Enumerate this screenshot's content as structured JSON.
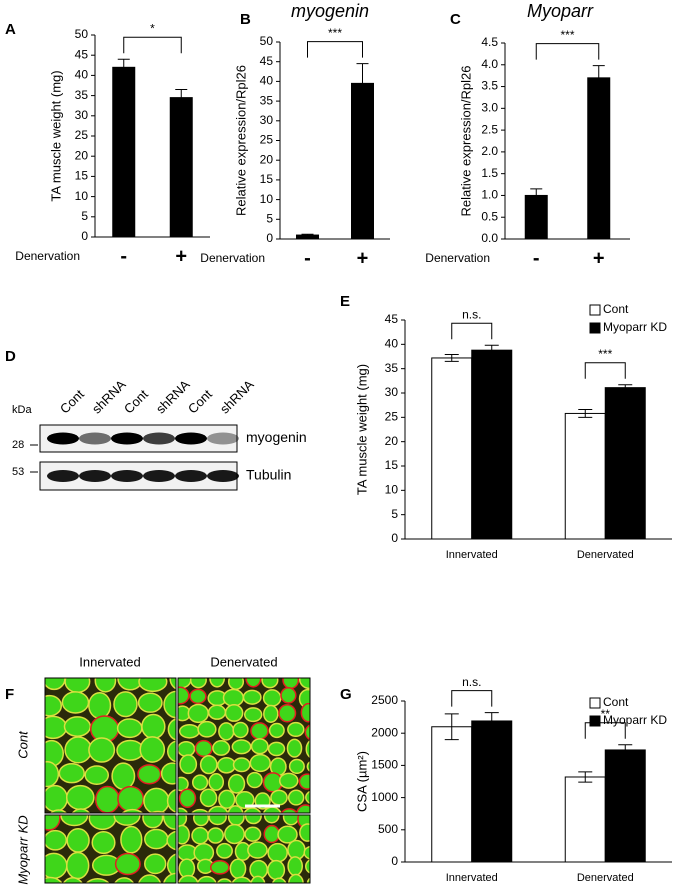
{
  "chart_data": [
    {
      "type": "bar",
      "label": "A",
      "y_label": "TA muscle weight (mg)",
      "x_label": "Denervation",
      "categories": [
        "-",
        "+"
      ],
      "values": [
        42,
        34.5
      ],
      "errors": [
        2,
        2
      ],
      "color": "#000000",
      "ylim": [
        0,
        50
      ],
      "yticks": [
        0,
        5,
        10,
        15,
        20,
        25,
        30,
        35,
        40,
        45,
        50
      ],
      "annotation": "*"
    },
    {
      "type": "bar",
      "label": "B",
      "title": "myogenin",
      "y_label": "Relative expression/Rpl26",
      "x_label": "Denervation",
      "categories": [
        "-",
        "+"
      ],
      "values": [
        1,
        39.5
      ],
      "errors": [
        0.2,
        5
      ],
      "color": "#000000",
      "ylim": [
        0,
        50
      ],
      "yticks": [
        0,
        5,
        10,
        15,
        20,
        25,
        30,
        35,
        40,
        45,
        50
      ],
      "annotation": "***"
    },
    {
      "type": "bar",
      "label": "C",
      "title": "Myoparr",
      "y_label": "Relative expression/Rpl26",
      "x_label": "Denervation",
      "categories": [
        "-",
        "+"
      ],
      "values": [
        1.0,
        3.7
      ],
      "errors": [
        0.15,
        0.28
      ],
      "color": "#000000",
      "ylim": [
        0,
        4.5
      ],
      "yticks": [
        {
          "value": 0,
          "label": "0.0"
        },
        0.5,
        {
          "value": 1,
          "label": "1.0"
        },
        1.5,
        {
          "value": 2,
          "label": "2.0"
        },
        2.5,
        {
          "value": 3,
          "label": "3.0"
        },
        3.5,
        {
          "value": 4,
          "label": "4.0"
        },
        4.5
      ],
      "annotation": "***"
    },
    {
      "type": "grouped-bar",
      "label": "E",
      "y_label": "TA muscle weight (mg)",
      "categories": [
        "Innervated",
        "Denervated"
      ],
      "series": [
        {
          "name": "Cont",
          "color": "#ffffff",
          "values": [
            37.2,
            25.8
          ],
          "errors": [
            0.7,
            0.8
          ]
        },
        {
          "name": "Myoparr KD",
          "color": "#000000",
          "values": [
            38.8,
            31.1
          ],
          "errors": [
            1.0,
            0.6
          ]
        }
      ],
      "ylim": [
        0,
        45
      ],
      "yticks": [
        0,
        5,
        10,
        15,
        20,
        25,
        30,
        35,
        40,
        45
      ],
      "annotations": [
        "n.s.",
        "***"
      ]
    },
    {
      "type": "grouped-bar",
      "label": "G",
      "y_label": "CSA (µm²)",
      "categories": [
        "Innervated",
        "Denervated"
      ],
      "series": [
        {
          "name": "Cont",
          "color": "#ffffff",
          "values": [
            2100,
            1320
          ],
          "errors": [
            200,
            80
          ]
        },
        {
          "name": "Myoparr KD",
          "color": "#000000",
          "values": [
            2190,
            1740
          ],
          "errors": [
            130,
            80
          ]
        }
      ],
      "ylim": [
        0,
        2500
      ],
      "yticks": [
        0,
        500,
        1000,
        1500,
        2000,
        2500
      ],
      "annotations": [
        "n.s.",
        "**"
      ]
    }
  ],
  "blot": {
    "label": "D",
    "lanes": [
      "Cont",
      "shRNA",
      "Cont",
      "shRNA",
      "Cont",
      "shRNA"
    ],
    "unit": "kDa",
    "markers": [
      "28",
      "53"
    ],
    "bands": [
      "myogenin",
      "Tubulin"
    ]
  },
  "micrographs": {
    "label": "F",
    "columns": [
      "Innervated",
      "Denervated"
    ],
    "rows": [
      "Cont",
      "Myoparr KD"
    ]
  }
}
